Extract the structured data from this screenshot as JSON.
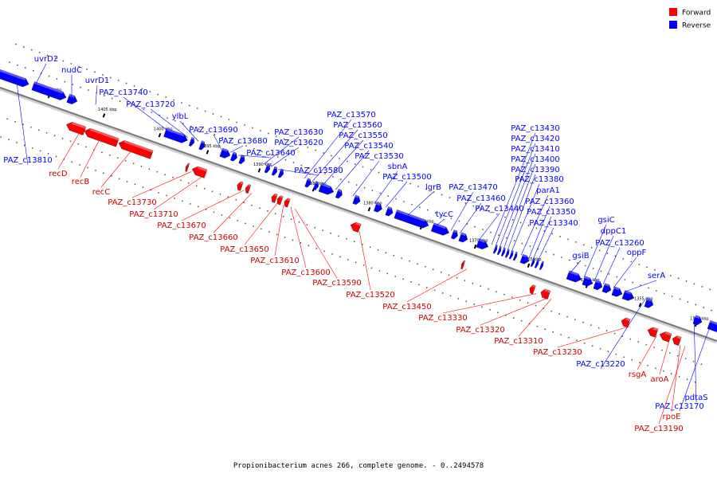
{
  "colors": {
    "forward": "#ff0000",
    "reverse": "#0000ff",
    "backbone": "#888888"
  },
  "legend": [
    {
      "label": "Forward",
      "strand": "forward"
    },
    {
      "label": "Reverse",
      "strand": "reverse"
    }
  ],
  "caption": "Propionibacterium acnes 266, complete genome. - 0..2494578",
  "ticks": [
    "1410 kbp",
    "1405 kbp",
    "1400 kbp",
    "1395 kbp",
    "1390 kbp",
    "1385 kbp",
    "1380 kbp",
    "1375 kbp",
    "1370 kbp",
    "1365 kbp",
    "1360 kbp",
    "1355 kbp",
    "1350 kbp"
  ],
  "reverse_labels": [
    "uvrD2",
    "nudC",
    "uvrD1",
    "PAZ_c13740",
    "PAZ_c13720",
    "ylbL",
    "PAZ_c13690",
    "PAZ_c13680",
    "PAZ_c13640",
    "PAZ_c13630",
    "PAZ_c13620",
    "PAZ_c13580",
    "PAZ_c13570",
    "PAZ_c13560",
    "PAZ_c13550",
    "PAZ_c13540",
    "PAZ_c13530",
    "sbnA",
    "PAZ_c13500",
    "lgrB",
    "tycC",
    "PAZ_c13470",
    "PAZ_c13460",
    "PAZ_c13440",
    "PAZ_c13430",
    "PAZ_c13420",
    "PAZ_c13410",
    "PAZ_c13400",
    "PAZ_c13390",
    "PAZ_c13380",
    "parA1",
    "PAZ_c13360",
    "PAZ_c13350",
    "PAZ_c13340",
    "gsiB",
    "gsiC",
    "dppC1",
    "PAZ_c13260",
    "oppF",
    "serA",
    "PAZ_c13810",
    "PAZ_c13220",
    "pdtaS",
    "PAZ_c13170"
  ],
  "forward_labels": [
    "recD",
    "recB",
    "recC",
    "PAZ_c13730",
    "PAZ_c13710",
    "PAZ_c13670",
    "PAZ_c13660",
    "PAZ_c13650",
    "PAZ_c13610",
    "PAZ_c13600",
    "PAZ_c13590",
    "PAZ_c13520",
    "PAZ_c13450",
    "PAZ_c13330",
    "PAZ_c13320",
    "PAZ_c13310",
    "PAZ_c13230",
    "rsgA",
    "aroA",
    "rpoE",
    "PAZ_c13190"
  ]
}
